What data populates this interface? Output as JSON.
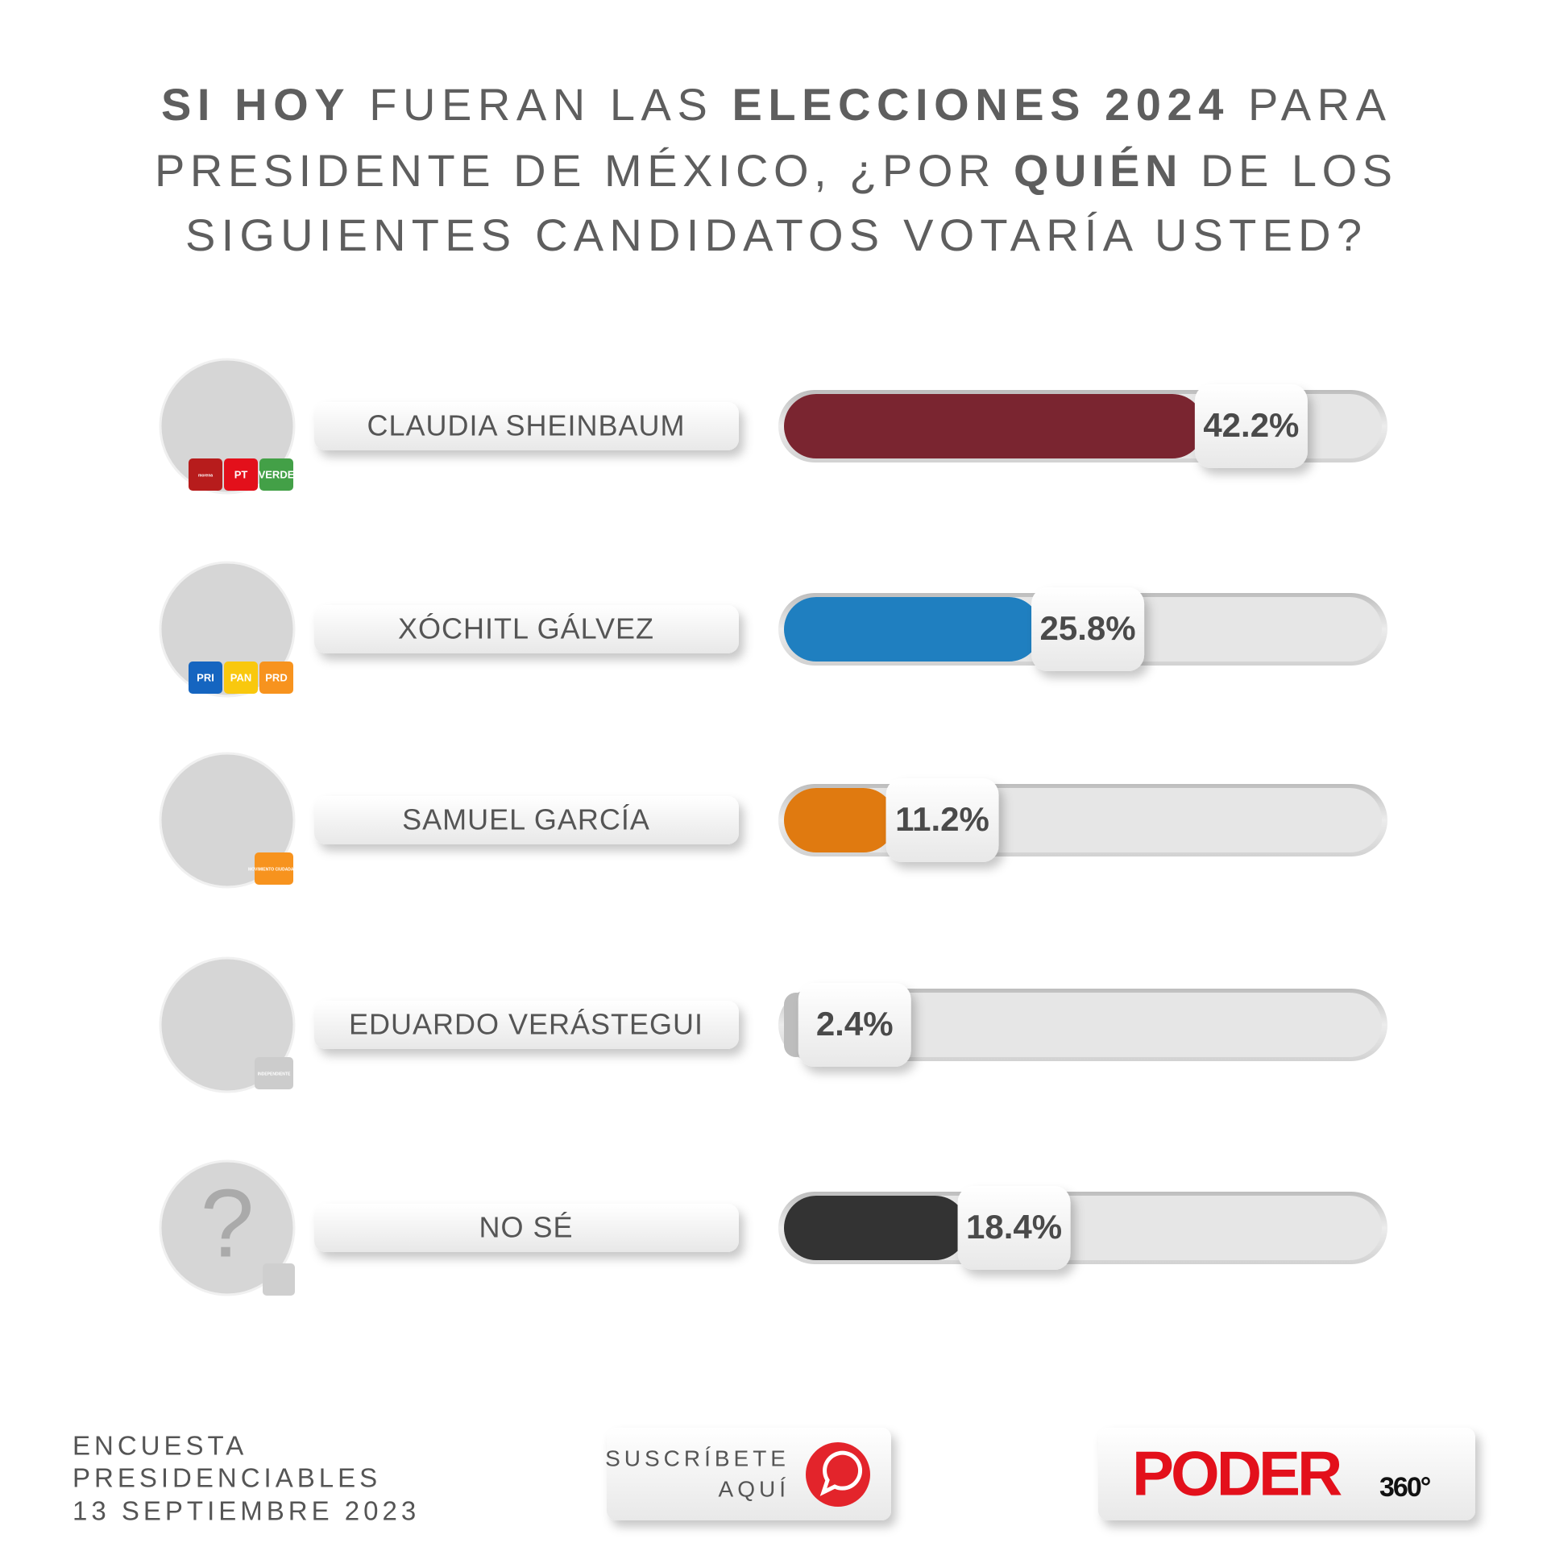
{
  "chart_data": {
    "type": "bar",
    "title_lines": [
      [
        {
          "text": "SI HOY",
          "bold": true
        },
        {
          "text": "FUERAN LAS",
          "bold": false
        },
        {
          "text": "ELECCIONES 2024",
          "bold": true
        },
        {
          "text": "PARA",
          "bold": false
        }
      ],
      [
        {
          "text": "PRESIDENTE DE MÉXICO, ¿POR",
          "bold": false
        },
        {
          "text": "QUIÉN",
          "bold": true
        },
        {
          "text": "DE LOS",
          "bold": false
        }
      ],
      [
        {
          "text": "SIGUIENTES CANDIDATOS VOTARÍA USTED?",
          "bold": false
        }
      ]
    ],
    "categories": [
      "CLAUDIA SHEINBAUM",
      "XÓCHITL GÁLVEZ",
      "SAMUEL GARCÍA",
      "EDUARDO VERÁSTEGUI",
      "NO SÉ"
    ],
    "values": [
      42.2,
      25.8,
      11.2,
      2.4,
      18.4
    ],
    "value_labels": [
      "42.2%",
      "25.8%",
      "11.2%",
      "2.4%",
      "18.4%"
    ],
    "colors": [
      "#7a2530",
      "#1f7fc0",
      "#e07a10",
      "#bdbdbd",
      "#333333"
    ],
    "badges": [
      [
        "morena",
        "PT",
        "VERDE"
      ],
      [
        "PRI",
        "PAN",
        "PRD"
      ],
      [
        "MOVIMIENTO CIUDADANO"
      ],
      [
        "INDEPENDIENTE"
      ],
      []
    ],
    "unknown_mark": "?",
    "xlim": [
      0,
      60
    ],
    "footer_lines": [
      "ENCUESTA",
      "PRESIDENCIABLES",
      "13 SEPTIEMBRE 2023"
    ],
    "subscribe_lines": [
      "SUSCRÍBETE",
      "AQUÍ"
    ],
    "logo": {
      "main": "PODER",
      "suffix": "360°"
    }
  }
}
